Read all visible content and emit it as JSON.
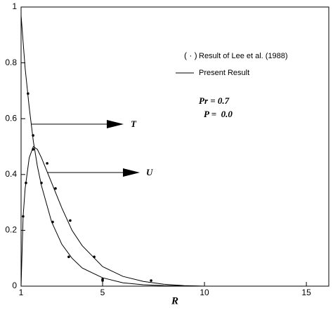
{
  "chart_data": {
    "type": "line",
    "x_label": "R",
    "xlim": [
      1,
      16.1
    ],
    "ylim": [
      0,
      1
    ],
    "xticks": [
      1,
      5,
      10,
      15
    ],
    "yticks": [
      0,
      0.2,
      0.4,
      0.6,
      0.8,
      1
    ],
    "legend": [
      {
        "marker_text": "( · )",
        "text": "Result of Lee et al. (1988)"
      },
      {
        "text": "Present Result"
      }
    ],
    "annotations": [
      "Pr = 0.7",
      "P =  0.0"
    ],
    "series": [
      {
        "label": "T",
        "style": "line",
        "color": "#000000",
        "x": [
          1,
          1.2,
          1.4,
          1.6,
          1.8,
          2,
          2.5,
          3,
          3.5,
          4,
          5,
          6,
          7,
          8,
          9,
          10
        ],
        "values": [
          0.97,
          0.78,
          0.64,
          0.52,
          0.43,
          0.36,
          0.23,
          0.15,
          0.1,
          0.065,
          0.03,
          0.012,
          0.005,
          0.002,
          0.001,
          0
        ]
      },
      {
        "label": "U",
        "style": "line",
        "color": "#000000",
        "x": [
          1,
          1.1,
          1.2,
          1.4,
          1.6,
          1.8,
          2,
          2.5,
          3,
          3.5,
          4,
          5,
          6,
          7,
          8,
          9,
          10
        ],
        "values": [
          0,
          0.25,
          0.35,
          0.46,
          0.5,
          0.49,
          0.46,
          0.37,
          0.28,
          0.2,
          0.145,
          0.07,
          0.035,
          0.017,
          0.007,
          0.002,
          0
        ]
      },
      {
        "style": "dots",
        "color": "#000000",
        "x": [
          1.34,
          1.59,
          2.0,
          2.55,
          3.34,
          5.0
        ],
        "values": [
          0.69,
          0.54,
          0.37,
          0.23,
          0.105,
          0.02
        ]
      },
      {
        "style": "dots",
        "color": "#000000",
        "x": [
          1.1,
          1.24,
          1.59,
          2.28,
          2.69,
          3.41,
          4.59,
          5.0,
          7.38
        ],
        "values": [
          0.25,
          0.37,
          0.49,
          0.44,
          0.35,
          0.235,
          0.105,
          0.025,
          0.02
        ]
      }
    ]
  }
}
